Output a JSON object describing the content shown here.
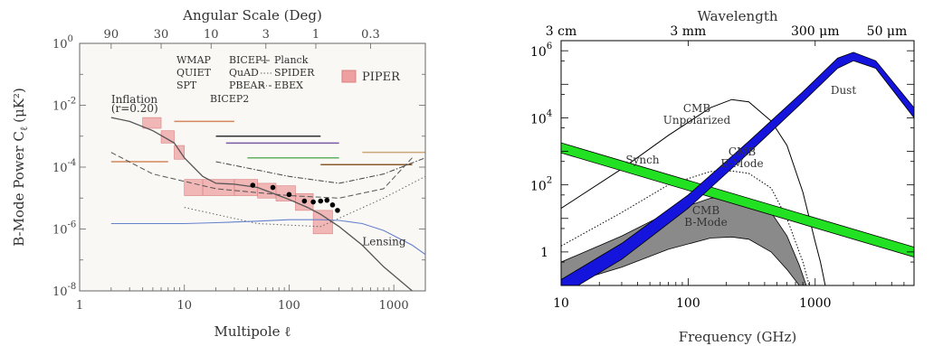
{
  "chart_data": [
    {
      "type": "scatter",
      "title": "",
      "top_axis_label": "Angular Scale (Deg)",
      "top_ticks": [
        "90",
        "30",
        "10",
        "3",
        "1",
        "0.3"
      ],
      "top_tick_ell": [
        2,
        6,
        18,
        60,
        180,
        600
      ],
      "xlabel": "Multipole ℓ",
      "ylabel": "B-Mode Power C",
      "ylabel_sub": "ℓ",
      "ylabel_units": "(μK²)",
      "xscale": "log",
      "yscale": "log",
      "xlim": [
        1,
        2000
      ],
      "ylim": [
        1e-08,
        1
      ],
      "x_ticks": [
        1,
        10,
        100,
        1000
      ],
      "x_tick_labels": [
        "1",
        "10",
        "100",
        "1000"
      ],
      "y_ticks_exp": [
        -8,
        -6,
        -4,
        -2,
        0
      ],
      "y_tick_mantissa": "10",
      "legend": [
        {
          "name": "WMAP",
          "color": "#d2885a",
          "style": "solid"
        },
        {
          "name": "QUIET",
          "color": "#7a5aa5",
          "style": "solid"
        },
        {
          "name": "SPT",
          "color": "#333333",
          "style": "solid"
        },
        {
          "name": "BICEP1",
          "color": "#60b060",
          "style": "solid"
        },
        {
          "name": "QuAD",
          "color": "#8a5a2a",
          "style": "solid"
        },
        {
          "name": "PBEAR",
          "color": "#c9a878",
          "style": "solid"
        },
        {
          "name": "BICEP2",
          "color": "#000000",
          "style": "marker"
        },
        {
          "name": "Planck",
          "color": "#555555",
          "style": "dash"
        },
        {
          "name": "SPIDER",
          "color": "#666666",
          "style": "dot"
        },
        {
          "name": "EBEX",
          "color": "#444444",
          "style": "dashdot"
        },
        {
          "name": "PIPER",
          "color": "#e89090",
          "style": "box"
        }
      ],
      "annotations": [
        {
          "text": "Inflation",
          "x": 2.0,
          "y": 0.012
        },
        {
          "text": "(r=0.20)",
          "x": 2.0,
          "y": 0.006
        },
        {
          "text": "Lensing",
          "x": 500,
          "y": 3e-07
        }
      ],
      "inflation_curve": {
        "name": "Inflation (r=0.20)",
        "color": "#555555",
        "x": [
          2,
          3,
          5,
          8,
          10,
          15,
          20,
          30,
          50,
          80,
          100,
          150,
          200,
          300,
          500,
          800,
          1500
        ],
        "y": [
          0.004,
          0.003,
          0.0015,
          0.0006,
          0.0002,
          5e-05,
          3e-05,
          2.8e-05,
          2.2e-05,
          1.2e-05,
          9e-06,
          5e-06,
          3e-06,
          1.2e-06,
          3e-07,
          6e-08,
          1e-08
        ]
      },
      "lensing_curve": {
        "name": "Lensing",
        "color": "#6680cc",
        "x": [
          2,
          5,
          10,
          20,
          50,
          100,
          200,
          300,
          500,
          800,
          1500,
          2000
        ],
        "y": [
          1.5e-06,
          1.5e-06,
          1.5e-06,
          1.6e-06,
          1.8e-06,
          2e-06,
          2e-06,
          1.9e-06,
          1.5e-06,
          9e-07,
          3e-07,
          1.5e-07
        ]
      },
      "piper_boxes": [
        {
          "x1": 4,
          "x2": 6,
          "y1": 0.0018,
          "y2": 0.004
        },
        {
          "x1": 6,
          "x2": 8,
          "y1": 0.0006,
          "y2": 0.0015
        },
        {
          "x1": 8,
          "x2": 10,
          "y1": 0.00018,
          "y2": 0.0005
        },
        {
          "x1": 10,
          "x2": 15,
          "y1": 1.2e-05,
          "y2": 4e-05
        },
        {
          "x1": 15,
          "x2": 30,
          "y1": 1.2e-05,
          "y2": 4e-05
        },
        {
          "x1": 30,
          "x2": 50,
          "y1": 1.2e-05,
          "y2": 4e-05
        },
        {
          "x1": 50,
          "x2": 75,
          "y1": 1e-05,
          "y2": 3e-05
        },
        {
          "x1": 75,
          "x2": 115,
          "y1": 8e-06,
          "y2": 2.5e-05
        },
        {
          "x1": 115,
          "x2": 170,
          "y1": 4e-06,
          "y2": 1.4e-05
        },
        {
          "x1": 170,
          "x2": 260,
          "y1": 7e-07,
          "y2": 4e-06
        }
      ],
      "bicep2_points": {
        "x": [
          45,
          70,
          100,
          140,
          170,
          200,
          230,
          260,
          290
        ],
        "y": [
          2.6e-05,
          2.2e-05,
          1.3e-05,
          8e-06,
          7.5e-06,
          8e-06,
          8.5e-06,
          6e-06,
          4e-06
        ]
      },
      "experiment_limits": [
        {
          "name": "WMAP",
          "color": "#d2885a",
          "x1": 2,
          "x2": 7,
          "y": 0.00015
        },
        {
          "name": "WMAP",
          "color": "#d2885a",
          "x1": 8,
          "x2": 30,
          "y": 0.003
        },
        {
          "name": "QUIET",
          "color": "#7a5aa5",
          "x1": 25,
          "x2": 300,
          "y": 0.0006
        },
        {
          "name": "SPT",
          "color": "#333333",
          "x1": 20,
          "x2": 200,
          "y": 0.001
        },
        {
          "name": "BICEP1",
          "color": "#60b060",
          "x1": 40,
          "x2": 300,
          "y": 0.0002
        },
        {
          "name": "QuAD",
          "color": "#8a5a2a",
          "x1": 200,
          "x2": 1500,
          "y": 0.00012
        },
        {
          "name": "PBEAR",
          "color": "#c9a878",
          "x1": 500,
          "x2": 2000,
          "y": 0.0003
        }
      ],
      "sensitivity_curves": [
        {
          "name": "Planck",
          "color": "#555555",
          "style": "dash",
          "x": [
            2,
            5,
            20,
            100,
            300,
            800,
            1500
          ],
          "y": [
            0.0003,
            6e-05,
            2e-05,
            1.2e-05,
            1e-05,
            2e-05,
            0.0002
          ]
        },
        {
          "name": "SPIDER",
          "color": "#666666",
          "style": "dot",
          "x": [
            10,
            50,
            200,
            800,
            2000
          ],
          "y": [
            5e-06,
            1.5e-06,
            1.2e-06,
            1e-05,
            5e-05
          ]
        },
        {
          "name": "EBEX",
          "color": "#444444",
          "style": "dashdot",
          "x": [
            20,
            100,
            300,
            800,
            2000
          ],
          "y": [
            0.00015,
            5e-05,
            3e-05,
            6e-05,
            0.0002
          ]
        }
      ]
    },
    {
      "type": "line",
      "title": "",
      "top_axis_label": "Wavelength",
      "top_ticks": [
        "3 cm",
        "3 mm",
        "300 μm",
        "50 μm"
      ],
      "top_tick_freq": [
        10,
        100,
        1000,
        6000
      ],
      "xlabel": "Frequency (GHz)",
      "ylabel": "",
      "xscale": "log",
      "yscale": "log",
      "xlim": [
        10,
        6000
      ],
      "ylim": [
        0.1,
        2000000
      ],
      "x_ticks": [
        10,
        100,
        1000
      ],
      "x_tick_labels": [
        "10",
        "100",
        "1000"
      ],
      "y_ticks_exp": [
        0,
        2,
        4,
        6
      ],
      "y_tick_mantissa": "10",
      "y_tick_one": "1",
      "series": [
        {
          "name": "CMB Unpolarized",
          "label_lines": [
            "CMB",
            "Unpolarized"
          ],
          "color": "#000000",
          "style": "solid",
          "x": [
            10,
            30,
            70,
            150,
            220,
            300,
            450,
            600,
            800,
            1000,
            1100,
            1200
          ],
          "y": [
            20,
            300,
            3000,
            20000,
            35000,
            30000,
            8000,
            1500,
            60,
            2,
            0.5,
            0.1
          ]
        },
        {
          "name": "CMB E-Mode",
          "label_lines": [
            "CMB",
            "E-Mode"
          ],
          "color": "#000000",
          "style": "dotted",
          "x": [
            10,
            30,
            70,
            150,
            220,
            300,
            450,
            600,
            800,
            900
          ],
          "y": [
            1.5,
            15,
            100,
            250,
            260,
            220,
            80,
            10,
            0.5,
            0.1
          ]
        },
        {
          "name": "CMB B-Mode",
          "label_lines": [
            "CMB",
            "B-Mode"
          ],
          "color": "#888888",
          "style": "band",
          "x": [
            10,
            30,
            70,
            150,
            220,
            300,
            450,
            600,
            750,
            850
          ],
          "y_upper": [
            0.5,
            3,
            15,
            40,
            45,
            38,
            15,
            3,
            0.4,
            0.1
          ],
          "y_lower": [
            0.1,
            0.35,
            1.2,
            2.6,
            2.8,
            2.4,
            1.0,
            0.3,
            0.1,
            0.1
          ]
        },
        {
          "name": "Synch",
          "label_lines": [
            "Synch"
          ],
          "color": "#22e022",
          "style": "band",
          "x": [
            10,
            6000
          ],
          "y_upper": [
            1800,
            1.4
          ],
          "y_lower": [
            900,
            0.7
          ]
        },
        {
          "name": "Dust",
          "label_lines": [
            "Dust"
          ],
          "color": "#1414dc",
          "style": "band",
          "x": [
            10,
            30,
            100,
            300,
            800,
            1500,
            2000,
            3000,
            6000
          ],
          "y_upper": [
            0.15,
            1.8,
            50,
            2000,
            60000,
            600000,
            900000,
            500000,
            20000
          ],
          "y_lower": [
            0.05,
            0.6,
            20,
            900,
            30000,
            300000,
            500000,
            300000,
            10000
          ]
        }
      ]
    }
  ]
}
